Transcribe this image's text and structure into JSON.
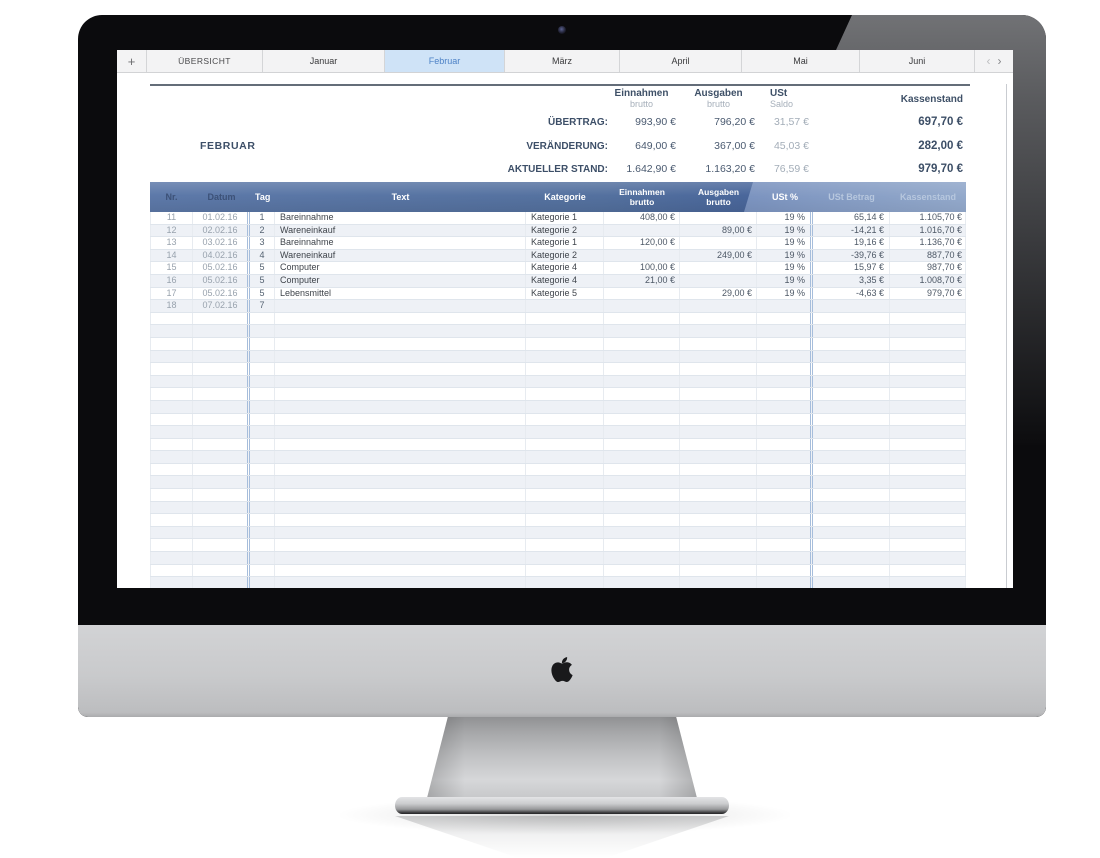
{
  "tab_bar": {
    "add_label": "+",
    "tabs": [
      {
        "label": "ÜBERSICHT"
      },
      {
        "label": "Januar"
      },
      {
        "label": "Februar"
      },
      {
        "label": "März"
      },
      {
        "label": "April"
      },
      {
        "label": "Mai"
      },
      {
        "label": "Juni"
      }
    ],
    "selected_tab": "Februar",
    "prev_icon": "‹",
    "next_icon": "›"
  },
  "summary": {
    "month_label": "FEBRUAR",
    "columns": [
      {
        "title": "Einnahmen",
        "subtitle": "brutto"
      },
      {
        "title": "Ausgaben",
        "subtitle": "brutto"
      },
      {
        "title": "USt",
        "subtitle": "Saldo"
      },
      {
        "title": "Kassenstand",
        "subtitle": ""
      }
    ],
    "rows": [
      {
        "label": "ÜBERTRAG:",
        "einnahmen": "993,90 €",
        "ausgaben": "796,20 €",
        "ust": "31,57 €",
        "kassenstand": "697,70 €"
      },
      {
        "label": "VERÄNDERUNG:",
        "einnahmen": "649,00 €",
        "ausgaben": "367,00 €",
        "ust": "45,03 €",
        "kassenstand": "282,00 €"
      },
      {
        "label": "AKTUELLER STAND:",
        "einnahmen": "1.642,90 €",
        "ausgaben": "1.163,20 €",
        "ust": "76,59 €",
        "kassenstand": "979,70 €"
      }
    ]
  },
  "table": {
    "headers": [
      "Nr.",
      "Datum",
      "Tag",
      "Text",
      "Kategorie",
      "Einnahmen\nbrutto",
      "Ausgaben\nbrutto",
      "USt %",
      "USt Betrag",
      "Kassenstand"
    ],
    "rows": [
      [
        "11",
        "01.02.16",
        "1",
        "Bareinnahme",
        "Kategorie 1",
        "408,00 €",
        "",
        "19 %",
        "65,14 €",
        "1.105,70 €"
      ],
      [
        "12",
        "02.02.16",
        "2",
        "Wareneinkauf",
        "Kategorie 2",
        "",
        "89,00 €",
        "19 %",
        "-14,21 €",
        "1.016,70 €"
      ],
      [
        "13",
        "03.02.16",
        "3",
        "Bareinnahme",
        "Kategorie 1",
        "120,00 €",
        "",
        "19 %",
        "19,16 €",
        "1.136,70 €"
      ],
      [
        "14",
        "04.02.16",
        "4",
        "Wareneinkauf",
        "Kategorie 2",
        "",
        "249,00 €",
        "19 %",
        "-39,76 €",
        "887,70 €"
      ],
      [
        "15",
        "05.02.16",
        "5",
        "Computer",
        "Kategorie 4",
        "100,00 €",
        "",
        "19 %",
        "15,97 €",
        "987,70 €"
      ],
      [
        "16",
        "05.02.16",
        "5",
        "Computer",
        "Kategorie 4",
        "21,00 €",
        "",
        "19 %",
        "3,35 €",
        "1.008,70 €"
      ],
      [
        "17",
        "05.02.16",
        "5",
        "Lebensmittel",
        "Kategorie 5",
        "",
        "29,00 €",
        "19 %",
        "-4,63 €",
        "979,70 €"
      ],
      [
        "18",
        "07.02.16",
        "7",
        "",
        "",
        "",
        "",
        "",
        "",
        ""
      ]
    ],
    "empty_rows": 22
  },
  "device": {
    "brand_icon": "apple-logo",
    "camera_icon": "webcam-dot"
  },
  "colors": {
    "header_blue_dark": "#47649a",
    "header_blue_light": "#93a9cb",
    "selected_tab_bg": "#cfe3f7",
    "selected_tab_text": "#4d82c6",
    "row_alt_bg": "#eef1f6",
    "divider_blue": "#a6bddb",
    "summary_text": "#3d4f68"
  }
}
